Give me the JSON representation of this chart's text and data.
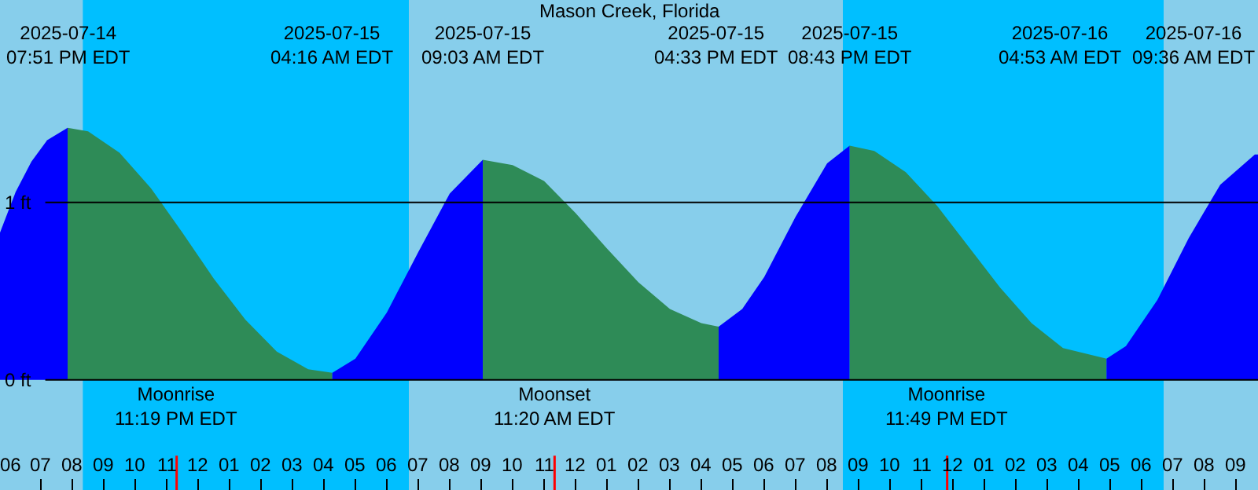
{
  "chart_data": {
    "type": "area",
    "title": "Mason Creek, Florida",
    "xlim": [
      "2025-07-14T17:42",
      "2025-07-16T09:42"
    ],
    "ylim": [
      -0.62,
      2.14
    ],
    "xticks": [
      {
        "value": "2025-07-14T18:00",
        "label": "06"
      },
      {
        "value": "2025-07-14T19:00",
        "label": "07"
      },
      {
        "value": "2025-07-14T20:00",
        "label": "08"
      },
      {
        "value": "2025-07-14T21:00",
        "label": "09"
      },
      {
        "value": "2025-07-14T22:00",
        "label": "10"
      },
      {
        "value": "2025-07-14T23:00",
        "label": "11"
      },
      {
        "value": "2025-07-15T00:00",
        "label": "12"
      },
      {
        "value": "2025-07-15T01:00",
        "label": "01"
      },
      {
        "value": "2025-07-15T02:00",
        "label": "02"
      },
      {
        "value": "2025-07-15T03:00",
        "label": "03"
      },
      {
        "value": "2025-07-15T04:00",
        "label": "04"
      },
      {
        "value": "2025-07-15T05:00",
        "label": "05"
      },
      {
        "value": "2025-07-15T06:00",
        "label": "06"
      },
      {
        "value": "2025-07-15T07:00",
        "label": "07"
      },
      {
        "value": "2025-07-15T08:00",
        "label": "08"
      },
      {
        "value": "2025-07-15T09:00",
        "label": "09"
      },
      {
        "value": "2025-07-15T10:00",
        "label": "10"
      },
      {
        "value": "2025-07-15T11:00",
        "label": "11"
      },
      {
        "value": "2025-07-15T12:00",
        "label": "12"
      },
      {
        "value": "2025-07-15T13:00",
        "label": "01"
      },
      {
        "value": "2025-07-15T14:00",
        "label": "02"
      },
      {
        "value": "2025-07-15T15:00",
        "label": "03"
      },
      {
        "value": "2025-07-15T16:00",
        "label": "04"
      },
      {
        "value": "2025-07-15T17:00",
        "label": "05"
      },
      {
        "value": "2025-07-15T18:00",
        "label": "06"
      },
      {
        "value": "2025-07-15T19:00",
        "label": "07"
      },
      {
        "value": "2025-07-15T20:00",
        "label": "08"
      },
      {
        "value": "2025-07-15T21:00",
        "label": "09"
      },
      {
        "value": "2025-07-15T22:00",
        "label": "10"
      },
      {
        "value": "2025-07-15T23:00",
        "label": "11"
      },
      {
        "value": "2025-07-16T00:00",
        "label": "12"
      },
      {
        "value": "2025-07-16T01:00",
        "label": "01"
      },
      {
        "value": "2025-07-16T02:00",
        "label": "02"
      },
      {
        "value": "2025-07-16T03:00",
        "label": "03"
      },
      {
        "value": "2025-07-16T04:00",
        "label": "04"
      },
      {
        "value": "2025-07-16T05:00",
        "label": "05"
      },
      {
        "value": "2025-07-16T06:00",
        "label": "06"
      },
      {
        "value": "2025-07-16T07:00",
        "label": "07"
      },
      {
        "value": "2025-07-16T08:00",
        "label": "08"
      },
      {
        "value": "2025-07-16T09:00",
        "label": "09"
      }
    ],
    "yticks": [
      {
        "value": 0,
        "label": "0 ft"
      },
      {
        "value": 1,
        "label": "1 ft"
      }
    ],
    "grid": "y",
    "bands": [
      {
        "axis": "x",
        "from": "2025-07-14T20:20",
        "to": "2025-07-15T06:42",
        "color": "#00bfff"
      },
      {
        "axis": "x",
        "from": "2025-07-15T20:30",
        "to": "2025-07-16T06:42",
        "color": "#00bfff"
      }
    ],
    "ref_lines": [
      {
        "axis": "x",
        "value": "2025-07-14T23:19",
        "label": "Moonrise\n11:19 PM EDT",
        "color": "#ff0000"
      },
      {
        "axis": "x",
        "value": "2025-07-15T11:20",
        "label": "Moonset\n11:20 AM EDT",
        "color": "#ff0000"
      },
      {
        "axis": "x",
        "value": "2025-07-15T23:49",
        "label": "Moonrise\n11:49 PM EDT",
        "color": "#ff0000"
      }
    ],
    "series": [
      {
        "color": "#0000ff",
        "x": [
          "2025-07-14T17:42",
          "2025-07-14T18:12",
          "2025-07-14T18:42",
          "2025-07-14T19:12",
          "2025-07-14T19:51"
        ],
        "values": [
          0.83,
          1.06,
          1.23,
          1.35,
          1.42
        ]
      },
      {
        "color": "#2e8b57",
        "x": [
          "2025-07-14T19:51",
          "2025-07-14T20:30",
          "2025-07-14T21:30",
          "2025-07-14T22:30",
          "2025-07-14T23:30",
          "2025-07-15T00:30",
          "2025-07-15T01:30",
          "2025-07-15T02:30",
          "2025-07-15T03:30",
          "2025-07-15T04:16"
        ],
        "values": [
          1.42,
          1.4,
          1.28,
          1.08,
          0.83,
          0.57,
          0.34,
          0.16,
          0.06,
          0.04
        ]
      },
      {
        "color": "#0000ff",
        "x": [
          "2025-07-15T04:16",
          "2025-07-15T05:00",
          "2025-07-15T06:00",
          "2025-07-15T07:00",
          "2025-07-15T08:00",
          "2025-07-15T09:03"
        ],
        "values": [
          0.04,
          0.12,
          0.38,
          0.72,
          1.05,
          1.24
        ]
      },
      {
        "color": "#2e8b57",
        "x": [
          "2025-07-15T09:03",
          "2025-07-15T10:00",
          "2025-07-15T11:00",
          "2025-07-15T12:00",
          "2025-07-15T13:00",
          "2025-07-15T14:00",
          "2025-07-15T15:00",
          "2025-07-15T16:00",
          "2025-07-15T16:33"
        ],
        "values": [
          1.24,
          1.21,
          1.12,
          0.94,
          0.74,
          0.55,
          0.4,
          0.32,
          0.3
        ]
      },
      {
        "color": "#0000ff",
        "x": [
          "2025-07-15T16:33",
          "2025-07-15T17:18",
          "2025-07-15T18:00",
          "2025-07-15T19:00",
          "2025-07-15T20:00",
          "2025-07-15T20:43"
        ],
        "values": [
          0.3,
          0.4,
          0.58,
          0.92,
          1.22,
          1.32
        ]
      },
      {
        "color": "#2e8b57",
        "x": [
          "2025-07-15T20:43",
          "2025-07-15T21:30",
          "2025-07-15T22:30",
          "2025-07-15T23:30",
          "2025-07-16T00:30",
          "2025-07-16T01:30",
          "2025-07-16T02:30",
          "2025-07-16T03:30",
          "2025-07-16T04:53"
        ],
        "values": [
          1.32,
          1.29,
          1.17,
          0.98,
          0.75,
          0.52,
          0.32,
          0.18,
          0.12
        ]
      },
      {
        "color": "#0000ff",
        "x": [
          "2025-07-16T04:53",
          "2025-07-16T05:30",
          "2025-07-16T06:30",
          "2025-07-16T07:30",
          "2025-07-16T08:30",
          "2025-07-16T09:36",
          "2025-07-16T09:42"
        ],
        "values": [
          0.12,
          0.19,
          0.45,
          0.8,
          1.1,
          1.27,
          1.27
        ]
      }
    ],
    "annotations": [
      "2025-07-14\n07:51 PM EDT",
      "2025-07-15\n04:16 AM EDT",
      "2025-07-15\n09:03 AM EDT",
      "2025-07-15\n04:33 PM EDT",
      "2025-07-15\n08:43 PM EDT",
      "2025-07-16\n04:53 AM EDT",
      "2025-07-16\n09:36 AM EDT"
    ]
  }
}
